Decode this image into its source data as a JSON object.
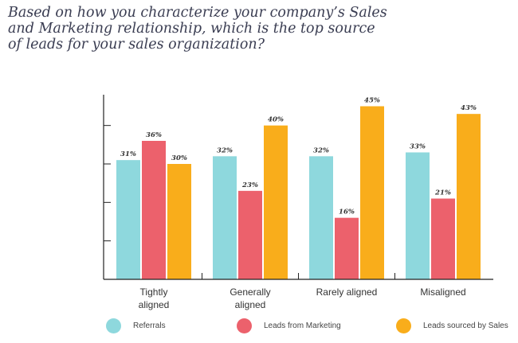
{
  "title_lines": [
    "Based on how you characterize your company’s Sales",
    "and Marketing relationship, which is the top source",
    "of leads for your sales organization?"
  ],
  "colors": {
    "referrals": "#8ed8dd",
    "marketing": "#ec616c",
    "sales": "#f9ad1b",
    "axis": "#222222"
  },
  "chart_data": {
    "type": "bar",
    "categories": [
      [
        "Tightly",
        "aligned"
      ],
      [
        "Generally",
        "aligned"
      ],
      [
        "Rarely aligned"
      ],
      [
        "Misaligned"
      ]
    ],
    "series": [
      {
        "name": "Referrals",
        "values": [
          31,
          32,
          32,
          33
        ],
        "labels": [
          "31%",
          "32%",
          "32%",
          "33%"
        ]
      },
      {
        "name": "Leads from Marketing",
        "values": [
          36,
          23,
          16,
          21
        ],
        "labels": [
          "36%",
          "23%",
          "16%",
          "21%"
        ]
      },
      {
        "name": "Leads sourced by Sales",
        "values": [
          30,
          40,
          45,
          43
        ],
        "labels": [
          "30%",
          "40%",
          "45%",
          "43%"
        ]
      }
    ],
    "ylim": [
      0,
      48
    ],
    "legend_position": "bottom",
    "grid": false
  },
  "legend": [
    {
      "label": "Referrals"
    },
    {
      "label": "Leads from Marketing"
    },
    {
      "label": "Leads sourced by Sales"
    }
  ]
}
